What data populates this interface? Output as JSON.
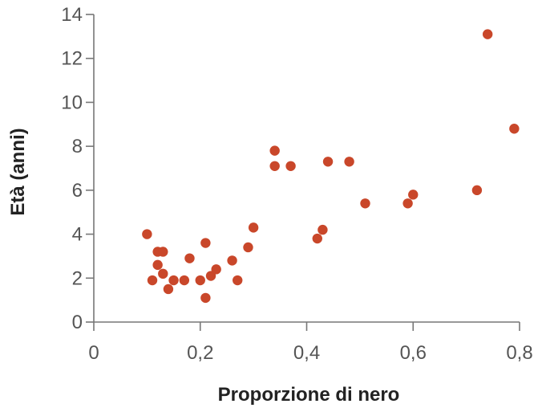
{
  "chart_data": {
    "type": "scatter",
    "title": "",
    "xlabel": "Proporzione di nero",
    "ylabel": "Età (anni)",
    "xlim": [
      0,
      0.8
    ],
    "ylim": [
      0,
      14
    ],
    "x_ticks": [
      "0",
      "0,2",
      "0,4",
      "0,6",
      "0,8"
    ],
    "y_ticks": [
      "0",
      "2",
      "4",
      "6",
      "8",
      "10",
      "12",
      "14"
    ],
    "grid": false,
    "point_color": "#c9472a",
    "points": [
      {
        "x": 0.1,
        "y": 4.0
      },
      {
        "x": 0.11,
        "y": 1.9
      },
      {
        "x": 0.12,
        "y": 3.2
      },
      {
        "x": 0.12,
        "y": 2.6
      },
      {
        "x": 0.13,
        "y": 3.2
      },
      {
        "x": 0.13,
        "y": 2.2
      },
      {
        "x": 0.14,
        "y": 1.5
      },
      {
        "x": 0.15,
        "y": 1.9
      },
      {
        "x": 0.17,
        "y": 1.9
      },
      {
        "x": 0.18,
        "y": 2.9
      },
      {
        "x": 0.2,
        "y": 1.9
      },
      {
        "x": 0.21,
        "y": 3.6
      },
      {
        "x": 0.21,
        "y": 1.1
      },
      {
        "x": 0.22,
        "y": 2.1
      },
      {
        "x": 0.23,
        "y": 2.4
      },
      {
        "x": 0.26,
        "y": 2.8
      },
      {
        "x": 0.27,
        "y": 1.9
      },
      {
        "x": 0.29,
        "y": 3.4
      },
      {
        "x": 0.3,
        "y": 4.3
      },
      {
        "x": 0.34,
        "y": 7.8
      },
      {
        "x": 0.34,
        "y": 7.1
      },
      {
        "x": 0.37,
        "y": 7.1
      },
      {
        "x": 0.42,
        "y": 3.8
      },
      {
        "x": 0.43,
        "y": 4.2
      },
      {
        "x": 0.44,
        "y": 7.3
      },
      {
        "x": 0.48,
        "y": 7.3
      },
      {
        "x": 0.51,
        "y": 5.4
      },
      {
        "x": 0.59,
        "y": 5.4
      },
      {
        "x": 0.6,
        "y": 5.8
      },
      {
        "x": 0.72,
        "y": 6.0
      },
      {
        "x": 0.74,
        "y": 13.1
      },
      {
        "x": 0.79,
        "y": 8.8
      }
    ]
  }
}
